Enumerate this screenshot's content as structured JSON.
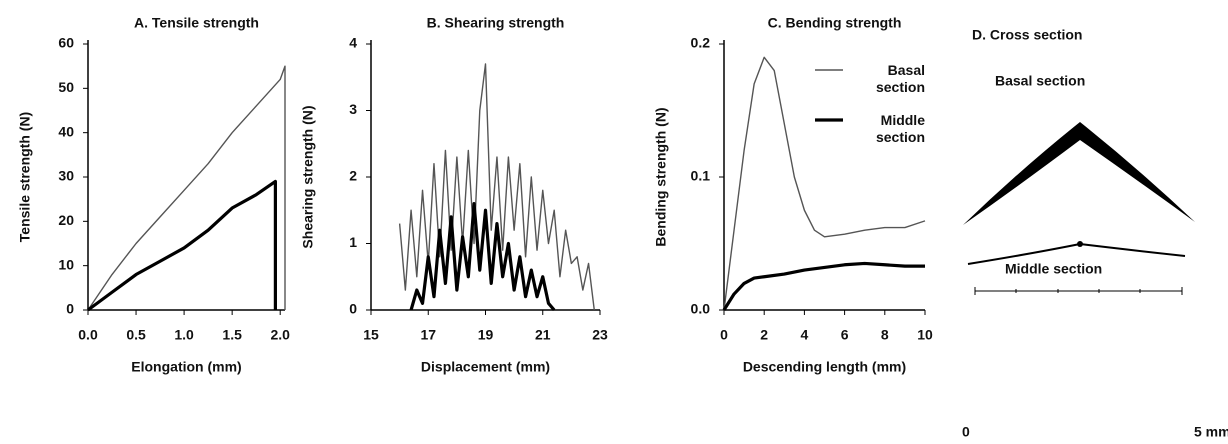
{
  "chart_data": [
    {
      "type": "line",
      "title": "A. Tensile strength",
      "x_label": "Elongation (mm)",
      "y_label": "Tensile strength (N)",
      "xlim": [
        0,
        2.05
      ],
      "ylim": [
        0,
        60
      ],
      "xticks": [
        {
          "value": 0,
          "label": "0.0"
        },
        0.5,
        {
          "value": 1,
          "label": "1.0"
        },
        1.5,
        {
          "value": 2,
          "label": "2.0"
        }
      ],
      "yticks": [
        0,
        10,
        20,
        30,
        40,
        50,
        60
      ],
      "series": [
        {
          "color": "#555555",
          "x": [
            0,
            0.25,
            0.5,
            0.75,
            1.0,
            1.25,
            1.5,
            1.75,
            2.0,
            2.05,
            2.05
          ],
          "values": [
            0,
            8,
            15,
            21,
            27,
            33,
            40,
            46,
            52,
            55,
            0
          ]
        },
        {
          "color": "#000000",
          "x": [
            0,
            0.25,
            0.5,
            0.75,
            1.0,
            1.25,
            1.5,
            1.75,
            1.95,
            1.95
          ],
          "values": [
            0,
            4,
            8,
            11,
            14,
            18,
            23,
            26,
            29,
            0
          ]
        }
      ]
    },
    {
      "type": "line",
      "title": "B. Shearing strength",
      "x_label": "Displacement (mm)",
      "y_label": "Shearing strength (N)",
      "xlim": [
        15,
        23
      ],
      "ylim": [
        0,
        4
      ],
      "xticks": [
        15,
        17,
        19,
        21,
        23
      ],
      "yticks": [
        0,
        1,
        2,
        3,
        4
      ],
      "series": [
        {
          "color": "#555555",
          "x": [
            16.0,
            16.2,
            16.4,
            16.6,
            16.8,
            17.0,
            17.2,
            17.4,
            17.6,
            17.8,
            18.0,
            18.2,
            18.4,
            18.6,
            18.8,
            19.0,
            19.2,
            19.4,
            19.6,
            19.8,
            20.0,
            20.2,
            20.4,
            20.6,
            20.8,
            21.0,
            21.2,
            21.4,
            21.6,
            21.8,
            22.0,
            22.2,
            22.4,
            22.6,
            22.8
          ],
          "values": [
            1.3,
            0.3,
            1.5,
            0.5,
            1.8,
            0.7,
            2.2,
            0.8,
            2.4,
            0.9,
            2.3,
            1.0,
            2.4,
            1.0,
            3.0,
            3.7,
            1.2,
            2.3,
            0.9,
            2.3,
            1.2,
            2.2,
            0.8,
            2.0,
            0.9,
            1.8,
            1.0,
            1.5,
            0.5,
            1.2,
            0.7,
            0.8,
            0.3,
            0.7,
            0.0
          ]
        },
        {
          "color": "#000000",
          "x": [
            16.4,
            16.6,
            16.8,
            17.0,
            17.2,
            17.4,
            17.6,
            17.8,
            18.0,
            18.2,
            18.4,
            18.6,
            18.8,
            19.0,
            19.2,
            19.4,
            19.6,
            19.8,
            20.0,
            20.2,
            20.4,
            20.6,
            20.8,
            21.0,
            21.2,
            21.4
          ],
          "values": [
            0,
            0.3,
            0.1,
            0.8,
            0.2,
            1.2,
            0.4,
            1.4,
            0.3,
            1.1,
            0.5,
            1.6,
            0.6,
            1.5,
            0.4,
            1.3,
            0.5,
            1.0,
            0.3,
            0.8,
            0.2,
            0.6,
            0.2,
            0.5,
            0.1,
            0
          ]
        }
      ]
    },
    {
      "type": "line",
      "title": "C. Bending strength",
      "x_label": "Descending length (mm)",
      "y_label": "Bending strength (N)",
      "xlim": [
        0,
        10
      ],
      "ylim": [
        0,
        0.2
      ],
      "xticks": [
        0,
        2,
        4,
        6,
        8,
        10
      ],
      "yticks": [
        {
          "value": 0,
          "label": "0.0"
        },
        0.1,
        0.2
      ],
      "legend": "upper right",
      "series": [
        {
          "name": "Basal section",
          "color": "#555555",
          "x": [
            0,
            0.5,
            1,
            1.5,
            2,
            2.5,
            3,
            3.5,
            4,
            4.5,
            5,
            6,
            7,
            8,
            9,
            10
          ],
          "values": [
            0,
            0.06,
            0.12,
            0.17,
            0.19,
            0.18,
            0.14,
            0.1,
            0.075,
            0.06,
            0.055,
            0.057,
            0.06,
            0.062,
            0.062,
            0.067
          ]
        },
        {
          "name": "Middle section",
          "color": "#000000",
          "x": [
            0,
            0.5,
            1,
            1.5,
            2,
            3,
            4,
            5,
            6,
            7,
            8,
            9,
            10
          ],
          "values": [
            0,
            0.012,
            0.02,
            0.024,
            0.025,
            0.027,
            0.03,
            0.032,
            0.034,
            0.035,
            0.034,
            0.033,
            0.033
          ]
        }
      ]
    }
  ],
  "cross_section": {
    "title": "D. Cross section",
    "basal_label": "Basal section",
    "middle_label": "Middle section",
    "scale_start": "0",
    "scale_end": "5 mm"
  }
}
